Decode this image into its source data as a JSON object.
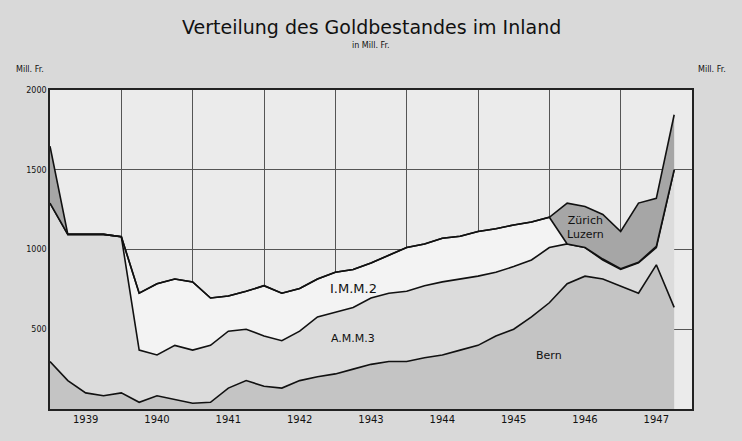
{
  "chart_data": {
    "type": "area",
    "title": "Verteilung des Goldbestandes im Inland",
    "subtitle": "in Mill. Fr.",
    "ylabel": "Mill. Fr.",
    "y2label": "Mill. Fr.",
    "stacked": true,
    "grid": true,
    "x": [
      1939,
      1939.25,
      1939.5,
      1939.75,
      1940,
      1940.25,
      1940.5,
      1940.75,
      1941,
      1941.25,
      1941.5,
      1941.75,
      1942,
      1942.25,
      1942.5,
      1942.75,
      1943,
      1943.25,
      1943.5,
      1943.75,
      1944,
      1944.25,
      1944.5,
      1944.75,
      1945,
      1945.25,
      1945.5,
      1945.75,
      1946,
      1946.25,
      1946.5,
      1946.75,
      1947,
      1947.25,
      1947.5,
      1947.75
    ],
    "xlim": [
      1939,
      1948
    ],
    "xticks": [
      {
        "value": 1939.5,
        "label": "1939"
      },
      {
        "value": 1940.5,
        "label": "1940"
      },
      {
        "value": 1941.5,
        "label": "1941"
      },
      {
        "value": 1942.5,
        "label": "1942"
      },
      {
        "value": 1943.5,
        "label": "1943"
      },
      {
        "value": 1944.5,
        "label": "1944"
      },
      {
        "value": 1945.5,
        "label": "1945"
      },
      {
        "value": 1946.5,
        "label": "1946"
      },
      {
        "value": 1947.5,
        "label": "1947"
      }
    ],
    "ylim": [
      0,
      2000
    ],
    "yticks": [
      500,
      1000,
      1500,
      2000
    ],
    "y2lim": [
      0,
      2000
    ],
    "y2ticks": [
      500,
      1000,
      1500,
      2000
    ],
    "series": [
      {
        "name": "Bern",
        "color": "#c4c4c4",
        "values": [
          298,
          178,
          101,
          83,
          101,
          42,
          83,
          60,
          36,
          42,
          131,
          178,
          143,
          131,
          178,
          202,
          220,
          250,
          280,
          298,
          298,
          321,
          339,
          369,
          399,
          458,
          500,
          577,
          666,
          785,
          833,
          815,
          773,
          726,
          904,
          637
        ]
      },
      {
        "name": "A.M.M.3",
        "color": "#dcdcdc",
        "values": [
          993,
          917,
          994,
          1012,
          979,
          327,
          256,
          339,
          333,
          357,
          357,
          322,
          315,
          297,
          310,
          375,
          387,
          387,
          416,
          428,
          440,
          452,
          458,
          446,
          434,
          399,
          393,
          357,
          346,
          250,
          179,
          119,
          102,
          190,
          108,
          863
        ]
      },
      {
        "name": "I.M.M.2",
        "color": "#f3f3f3",
        "values": [
          0,
          0,
          0,
          0,
          0,
          357,
          446,
          416,
          428,
          297,
          220,
          238,
          315,
          298,
          268,
          238,
          250,
          238,
          220,
          238,
          274,
          262,
          274,
          268,
          280,
          273,
          261,
          238,
          190,
          0,
          0,
          6,
          5,
          4,
          8,
          0
        ]
      },
      {
        "name": "Zürich Luzern",
        "color": "#a6a6a6",
        "values": [
          357,
          0,
          0,
          0,
          0,
          0,
          0,
          0,
          0,
          0,
          0,
          0,
          0,
          0,
          0,
          0,
          0,
          0,
          0,
          0,
          0,
          0,
          0,
          0,
          0,
          0,
          0,
          0,
          0,
          256,
          258,
          280,
          233,
          371,
          301,
          345
        ]
      }
    ]
  }
}
